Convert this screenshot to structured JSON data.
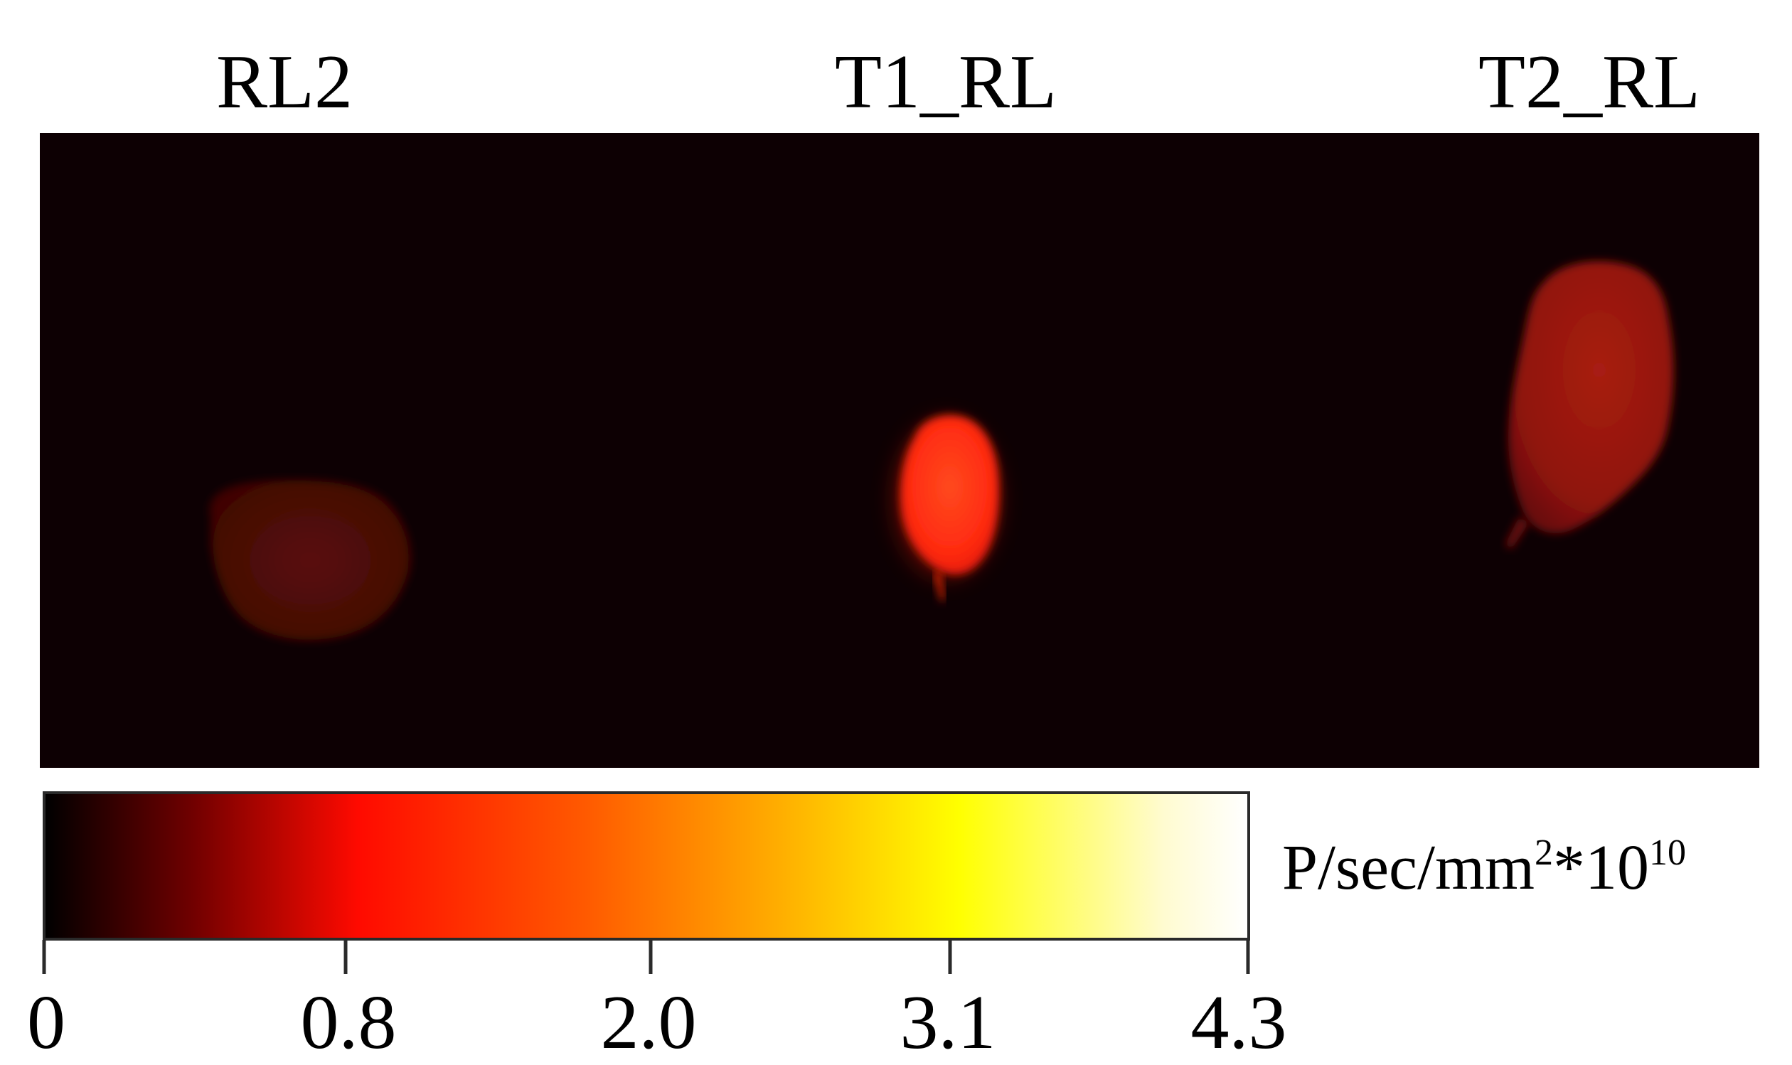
{
  "samples": [
    {
      "label": "RL2"
    },
    {
      "label": "T1_RL"
    },
    {
      "label": "T2_RL"
    }
  ],
  "colorbar": {
    "unit_base": "P/sec/mm",
    "unit_exp1": "2",
    "unit_mid": "*10",
    "unit_exp2": "10",
    "ticks": [
      "0",
      "0.8",
      "2.0",
      "3.1",
      "4.3"
    ],
    "colormap": [
      "#000000",
      "#6e0000",
      "#ff0a00",
      "#ff5a00",
      "#ffa800",
      "#ffff00",
      "#fffbd0",
      "#ffffff"
    ]
  },
  "colors": {
    "background": "#0d0003",
    "signal_weak": "#8a0d0a",
    "signal_strong": "#ff2a10"
  }
}
